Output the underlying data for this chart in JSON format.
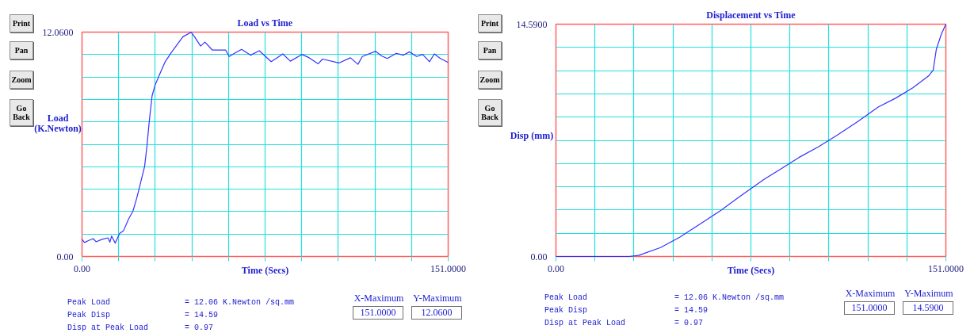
{
  "chart_data": [
    {
      "type": "line",
      "title": "Load vs Time",
      "xlabel": "Time (Secs)",
      "ylabel": "Load (K.Newton)",
      "x": [
        0,
        1.0,
        2.8,
        4.6,
        5.8,
        8.2,
        10.7,
        11.5,
        12.2,
        13.7,
        15.5,
        17.1,
        19.2,
        21.0,
        22.2,
        23.4,
        24.6,
        25.8,
        26.8,
        27.7,
        28.9,
        30.1,
        31.9,
        34.3,
        36.8,
        39.2,
        41.6,
        45.0,
        46.4,
        48.9,
        50.7,
        53.7,
        59.2,
        60.7,
        63.4,
        65.8,
        69.5,
        73.1,
        78.0,
        80.4,
        82.8,
        85.9,
        90.7,
        93.7,
        97.4,
        99.2,
        105.9,
        110.7,
        113.8,
        115.6,
        121.1,
        123.5,
        125.9,
        129.6,
        132.6,
        135.0,
        138.0,
        140.5,
        143.3,
        145.3,
        147.8,
        151.0
      ],
      "series": [
        {
          "color": "#3333ff",
          "values": [
            0.92,
            0.75,
            0.86,
            0.96,
            0.79,
            0.92,
            1.0,
            0.77,
            1.1,
            0.72,
            1.24,
            1.38,
            2.01,
            2.44,
            2.97,
            3.56,
            4.2,
            4.83,
            5.96,
            7.23,
            8.64,
            9.2,
            9.76,
            10.47,
            10.96,
            11.38,
            11.81,
            12.05,
            11.81,
            11.31,
            11.52,
            11.1,
            11.1,
            10.75,
            10.96,
            11.13,
            10.82,
            11.06,
            10.47,
            10.68,
            10.89,
            10.5,
            10.86,
            10.68,
            10.36,
            10.61,
            10.4,
            10.68,
            10.33,
            10.75,
            11.03,
            10.78,
            10.64,
            10.92,
            10.82,
            11.0,
            10.75,
            10.86,
            10.47,
            10.89,
            10.64,
            10.43
          ]
        }
      ],
      "xlim": [
        0,
        151
      ],
      "ylim": [
        0,
        12.06
      ],
      "xticks": [
        {
          "value": 0,
          "label": "0.00"
        },
        {
          "value": 15.1,
          "label": null
        },
        {
          "value": 30.2,
          "label": null
        },
        {
          "value": 45.3,
          "label": null
        },
        {
          "value": 60.4,
          "label": null
        },
        {
          "value": 75.5,
          "label": null
        },
        {
          "value": 90.6,
          "label": null
        },
        {
          "value": 105.7,
          "label": null
        },
        {
          "value": 120.8,
          "label": null
        },
        {
          "value": 135.9,
          "label": null
        },
        {
          "value": 151,
          "label": "151.0000"
        }
      ],
      "yticks": [
        {
          "value": 0,
          "label": "0.00"
        },
        {
          "value": 1.206,
          "label": null
        },
        {
          "value": 2.412,
          "label": null
        },
        {
          "value": 3.618,
          "label": null
        },
        {
          "value": 4.824,
          "label": null
        },
        {
          "value": 6.03,
          "label": null
        },
        {
          "value": 7.236,
          "label": null
        },
        {
          "value": 8.442,
          "label": null
        },
        {
          "value": 9.648,
          "label": null
        },
        {
          "value": 10.854,
          "label": null
        },
        {
          "value": 12.06,
          "label": "12.0600"
        }
      ],
      "grid": true,
      "annotations": [
        "Print",
        "Pan",
        "Zoom",
        "Go Back",
        "Peak Load",
        "= 12.06 K.Newton /sq.mm",
        "Peak Disp",
        "= 14.59",
        "Disp at Peak Load",
        "= 0.97",
        "X-Maximum",
        "151.0000",
        "Y-Maximum",
        "12.0600"
      ]
    },
    {
      "type": "line",
      "title": "Displacement vs Time",
      "xlabel": "Time (Secs)",
      "ylabel": "Disp (mm)",
      "x": [
        0,
        28.3,
        32.0,
        40.5,
        47.9,
        57.6,
        63.7,
        72.3,
        80.8,
        86.9,
        94.2,
        101.6,
        108.9,
        116.8,
        124.8,
        131.5,
        138.2,
        144.3,
        146.1,
        147.3,
        149.2,
        151.0
      ],
      "series": [
        {
          "color": "#3333ff",
          "values": [
            0,
            0,
            0.07,
            0.56,
            1.21,
            2.23,
            2.88,
            3.9,
            4.87,
            5.48,
            6.23,
            6.88,
            7.62,
            8.46,
            9.39,
            9.94,
            10.59,
            11.34,
            11.71,
            13.01,
            13.94,
            14.59
          ]
        }
      ],
      "xlim": [
        0,
        151
      ],
      "ylim": [
        0,
        14.59
      ],
      "xticks": [
        {
          "value": 0,
          "label": "0.00"
        },
        {
          "value": 15.1,
          "label": null
        },
        {
          "value": 30.2,
          "label": null
        },
        {
          "value": 45.3,
          "label": null
        },
        {
          "value": 60.4,
          "label": null
        },
        {
          "value": 75.5,
          "label": null
        },
        {
          "value": 90.6,
          "label": null
        },
        {
          "value": 105.7,
          "label": null
        },
        {
          "value": 120.8,
          "label": null
        },
        {
          "value": 135.9,
          "label": null
        },
        {
          "value": 151,
          "label": "151.0000"
        }
      ],
      "yticks": [
        {
          "value": 0,
          "label": "0.00"
        },
        {
          "value": 1.459,
          "label": null
        },
        {
          "value": 2.918,
          "label": null
        },
        {
          "value": 4.377,
          "label": null
        },
        {
          "value": 5.836,
          "label": null
        },
        {
          "value": 7.295,
          "label": null
        },
        {
          "value": 8.754,
          "label": null
        },
        {
          "value": 10.213,
          "label": null
        },
        {
          "value": 11.672,
          "label": null
        },
        {
          "value": 13.131,
          "label": null
        },
        {
          "value": 14.59,
          "label": "14.5900"
        }
      ],
      "grid": true,
      "annotations": [
        "Print",
        "Pan",
        "Zoom",
        "Go Back",
        "Peak Load",
        "= 12.06 K.Newton /sq.mm",
        "Peak Disp",
        "= 14.59",
        "Disp at Peak Load",
        "= 0.97",
        "X-Maximum",
        "151.0000",
        "Y-Maximum",
        "14.5900"
      ]
    }
  ]
}
